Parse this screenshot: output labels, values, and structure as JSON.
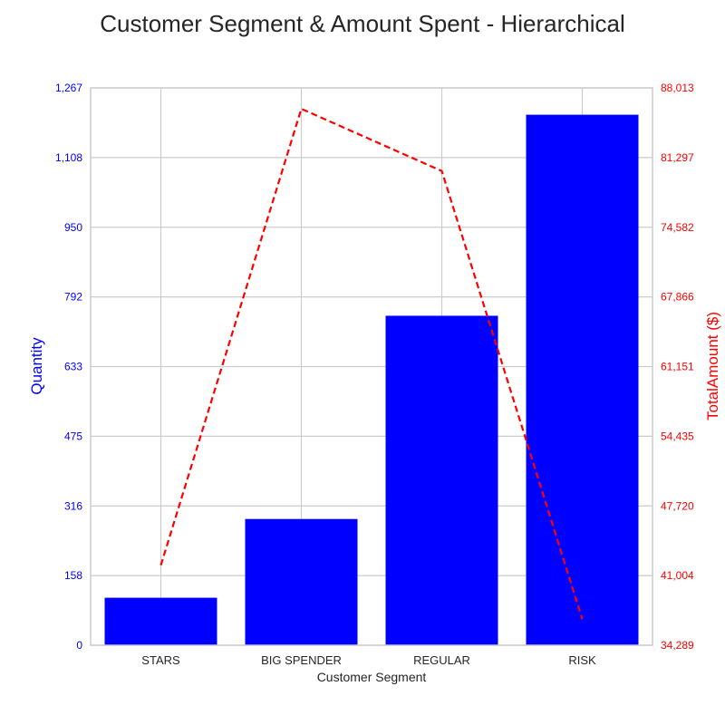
{
  "chart_data": {
    "type": "bar",
    "title": "Customer Segment & Amount Spent - Hierarchical",
    "xlabel": "Customer Segment",
    "ylabel": "Quantity",
    "ylabel_right": "TotalAmount ($)",
    "categories": [
      "STARS",
      "BIG SPENDER",
      "REGULAR",
      "RISK"
    ],
    "series": [
      {
        "type": "bar",
        "axis": "left",
        "values": [
          108,
          287,
          749,
          1206
        ],
        "color": "#0000ff"
      },
      {
        "type": "line",
        "axis": "right",
        "style": "dashed",
        "values": [
          42000,
          86000,
          80000,
          36800
        ],
        "color": "#ff0000"
      }
    ],
    "ylim": [
      0,
      1267
    ],
    "ylim_right": [
      34289,
      88013
    ],
    "yticks": [
      "0",
      "158",
      "316",
      "475",
      "633",
      "792",
      "950",
      "1,108",
      "1,267"
    ],
    "yticks_right": [
      "34,289",
      "41,004",
      "47,720",
      "54,435",
      "61,151",
      "67,866",
      "74,582",
      "81,297",
      "88,013"
    ],
    "grid": true
  }
}
